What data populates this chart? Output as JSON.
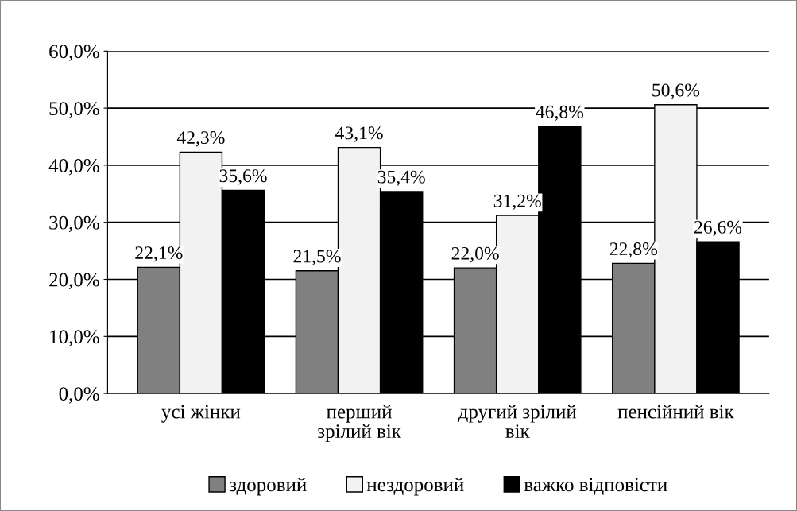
{
  "chart_data": {
    "type": "bar",
    "categories": [
      "усі жінки",
      "перший\nзрілий вік",
      "другий зрілий\nвік",
      "пенсійний вік"
    ],
    "series": [
      {
        "name": "здоровий",
        "color": "#808080",
        "values": [
          22.1,
          21.5,
          22.0,
          22.8
        ],
        "value_labels": [
          "22,1%",
          "21,5%",
          "22,0%",
          "22,8%"
        ]
      },
      {
        "name": "нездоровий",
        "color": "#f2f2f2",
        "values": [
          42.3,
          43.1,
          31.2,
          50.6
        ],
        "value_labels": [
          "42,3%",
          "43,1%",
          "31,2%",
          "50,6%"
        ]
      },
      {
        "name": "важко відповісти",
        "color": "#000000",
        "values": [
          35.6,
          35.4,
          46.8,
          26.6
        ],
        "value_labels": [
          "35,6%",
          "35,4%",
          "46,8%",
          "26,6%"
        ]
      }
    ],
    "ylim": [
      0,
      60
    ],
    "yticks": [
      {
        "value": 0,
        "label": "0,0%"
      },
      {
        "value": 10,
        "label": "10,0%"
      },
      {
        "value": 20,
        "label": "20,0%"
      },
      {
        "value": 30,
        "label": "30,0%"
      },
      {
        "value": 40,
        "label": "40,0%"
      },
      {
        "value": 50,
        "label": "50,0%"
      },
      {
        "value": 60,
        "label": "60,0%"
      }
    ],
    "grid": "y",
    "legend": "bottom"
  }
}
